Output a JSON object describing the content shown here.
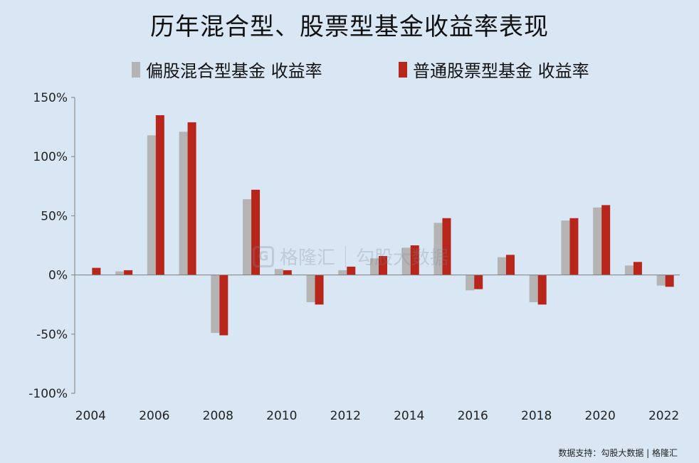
{
  "title": "历年混合型、股票型基金收益率表现",
  "footer": "数据支持：勾股大数据 | 格隆汇",
  "watermark": {
    "logo_icon": "G",
    "brand_cn": "格隆汇",
    "partner_cn": "勾股大数据"
  },
  "colors": {
    "series_1": "#b4b4b4",
    "series_2": "#b8261b",
    "background": "#d9e6f4",
    "axis": "#7f7f7f"
  },
  "chart_data": {
    "type": "bar",
    "x": [
      2004,
      2005,
      2006,
      2007,
      2008,
      2009,
      2010,
      2011,
      2012,
      2013,
      2014,
      2015,
      2016,
      2017,
      2018,
      2019,
      2020,
      2021,
      2022
    ],
    "x_tick_labels": [
      "2004",
      "2006",
      "2008",
      "2010",
      "2012",
      "2014",
      "2016",
      "2018",
      "2020",
      "2022"
    ],
    "y_tick_values": [
      -100,
      -50,
      0,
      50,
      100,
      150
    ],
    "y_tick_labels": [
      "-100%",
      "-50%",
      "0%",
      "50%",
      "100%",
      "150%"
    ],
    "ylim": [
      -100,
      150
    ],
    "unit": "%",
    "legend_position": "top",
    "grid": false,
    "series": [
      {
        "name": "偏股混合型基金 收益率",
        "values": [
          0,
          3,
          118,
          121,
          -49,
          64,
          5,
          -23,
          4,
          14,
          23,
          44,
          -13,
          15,
          -23,
          46,
          57,
          8,
          -9
        ]
      },
      {
        "name": "普通股票型基金 收益率",
        "values": [
          6,
          4,
          135,
          129,
          -51,
          72,
          4,
          -25,
          7,
          16,
          25,
          48,
          -12,
          17,
          -25,
          48,
          59,
          11,
          -10
        ]
      }
    ]
  }
}
